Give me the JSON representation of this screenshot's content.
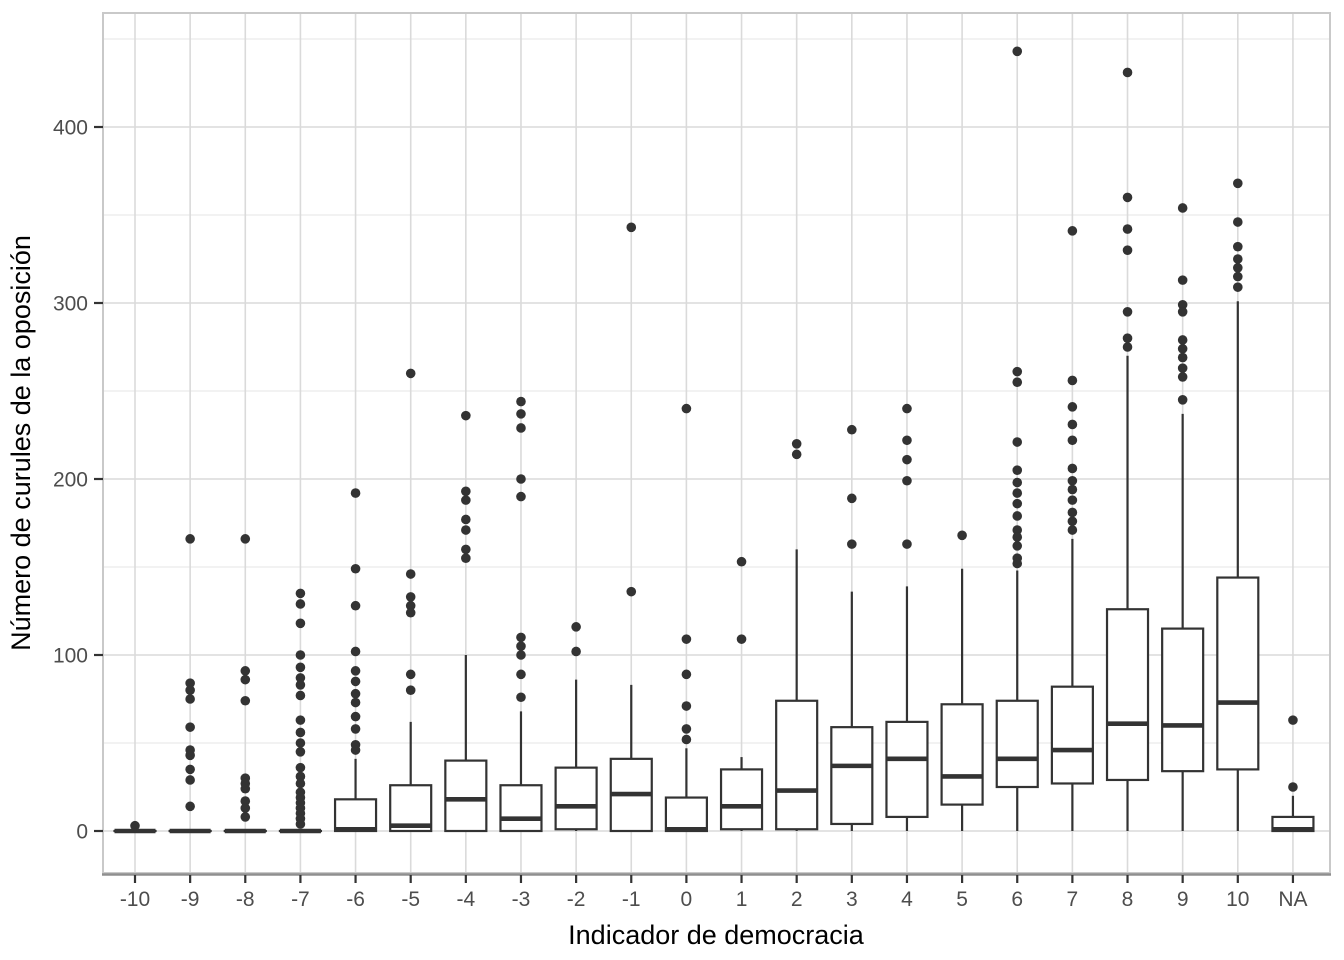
{
  "chart_data": {
    "type": "boxplot",
    "title": "",
    "xlabel": "Indicador de democracia",
    "ylabel": "Número de curules de la oposición",
    "y_ticks": [
      0,
      100,
      200,
      300,
      400
    ],
    "y_minor_ticks": [
      50,
      150,
      250,
      350,
      450
    ],
    "ylim": [
      -24,
      465
    ],
    "grid": true,
    "legend": "none",
    "categories": [
      "-10",
      "-9",
      "-8",
      "-7",
      "-6",
      "-5",
      "-4",
      "-3",
      "-2",
      "-1",
      "0",
      "1",
      "2",
      "3",
      "4",
      "5",
      "6",
      "7",
      "8",
      "9",
      "10",
      "NA"
    ],
    "boxes": [
      {
        "label": "-10",
        "whisker_low": 0,
        "q1": 0,
        "median": 0,
        "q3": 0,
        "whisker_high": 0,
        "outliers": [
          3
        ]
      },
      {
        "label": "-9",
        "whisker_low": 0,
        "q1": 0,
        "median": 0,
        "q3": 0,
        "whisker_high": 0,
        "outliers": [
          166,
          84,
          80,
          75,
          59,
          46,
          43,
          35,
          29,
          14
        ]
      },
      {
        "label": "-8",
        "whisker_low": 0,
        "q1": 0,
        "median": 0,
        "q3": 0,
        "whisker_high": 0,
        "outliers": [
          166,
          91,
          86,
          74,
          30,
          27,
          24,
          17,
          13,
          8
        ]
      },
      {
        "label": "-7",
        "whisker_low": 0,
        "q1": 0,
        "median": 0,
        "q3": 0,
        "whisker_high": 0,
        "outliers": [
          135,
          129,
          118,
          100,
          93,
          87,
          83,
          77,
          63,
          56,
          50,
          45,
          36,
          31,
          27,
          22,
          19,
          16,
          13,
          10,
          7,
          4
        ]
      },
      {
        "label": "-6",
        "whisker_low": 0,
        "q1": 0,
        "median": 1,
        "q3": 18,
        "whisker_high": 41,
        "outliers": [
          192,
          149,
          128,
          102,
          91,
          85,
          78,
          73,
          65,
          58,
          49,
          46
        ]
      },
      {
        "label": "-5",
        "whisker_low": 0,
        "q1": 0,
        "median": 3,
        "q3": 26,
        "whisker_high": 62,
        "outliers": [
          260,
          146,
          133,
          128,
          124,
          89,
          80
        ]
      },
      {
        "label": "-4",
        "whisker_low": 0,
        "q1": 0,
        "median": 18,
        "q3": 40,
        "whisker_high": 100,
        "outliers": [
          236,
          193,
          188,
          177,
          171,
          160,
          155
        ]
      },
      {
        "label": "-3",
        "whisker_low": 0,
        "q1": 0,
        "median": 7,
        "q3": 26,
        "whisker_high": 68,
        "outliers": [
          244,
          237,
          229,
          200,
          190,
          110,
          105,
          100,
          89,
          76
        ]
      },
      {
        "label": "-2",
        "whisker_low": 0,
        "q1": 1,
        "median": 14,
        "q3": 36,
        "whisker_high": 86,
        "outliers": [
          116,
          102
        ]
      },
      {
        "label": "-1",
        "whisker_low": 0,
        "q1": 0,
        "median": 21,
        "q3": 41,
        "whisker_high": 83,
        "outliers": [
          343,
          136
        ]
      },
      {
        "label": "0",
        "whisker_low": 0,
        "q1": 0,
        "median": 1,
        "q3": 19,
        "whisker_high": 47,
        "outliers": [
          240,
          109,
          89,
          71,
          58,
          52
        ]
      },
      {
        "label": "1",
        "whisker_low": 0,
        "q1": 1,
        "median": 14,
        "q3": 35,
        "whisker_high": 42,
        "outliers": [
          153,
          109
        ]
      },
      {
        "label": "2",
        "whisker_low": 0,
        "q1": 1,
        "median": 23,
        "q3": 74,
        "whisker_high": 160,
        "outliers": [
          220,
          214
        ]
      },
      {
        "label": "3",
        "whisker_low": 0,
        "q1": 4,
        "median": 37,
        "q3": 59,
        "whisker_high": 136,
        "outliers": [
          228,
          189,
          163
        ]
      },
      {
        "label": "4",
        "whisker_low": 0,
        "q1": 8,
        "median": 41,
        "q3": 62,
        "whisker_high": 139,
        "outliers": [
          240,
          222,
          211,
          199,
          163
        ]
      },
      {
        "label": "5",
        "whisker_low": 0,
        "q1": 15,
        "median": 31,
        "q3": 72,
        "whisker_high": 149,
        "outliers": [
          168
        ]
      },
      {
        "label": "6",
        "whisker_low": 0,
        "q1": 25,
        "median": 41,
        "q3": 74,
        "whisker_high": 148,
        "outliers": [
          443,
          261,
          255,
          221,
          205,
          198,
          192,
          186,
          179,
          171,
          167,
          162,
          155,
          152
        ]
      },
      {
        "label": "7",
        "whisker_low": 0,
        "q1": 27,
        "median": 46,
        "q3": 82,
        "whisker_high": 166,
        "outliers": [
          341,
          256,
          241,
          231,
          222,
          206,
          199,
          194,
          188,
          181,
          176,
          171
        ]
      },
      {
        "label": "8",
        "whisker_low": 0,
        "q1": 29,
        "median": 61,
        "q3": 126,
        "whisker_high": 270,
        "outliers": [
          431,
          360,
          342,
          330,
          295,
          280,
          275
        ]
      },
      {
        "label": "9",
        "whisker_low": 0,
        "q1": 34,
        "median": 60,
        "q3": 115,
        "whisker_high": 237,
        "outliers": [
          354,
          313,
          299,
          295,
          279,
          274,
          269,
          263,
          258,
          245
        ]
      },
      {
        "label": "10",
        "whisker_low": 0,
        "q1": 35,
        "median": 73,
        "q3": 144,
        "whisker_high": 301,
        "outliers": [
          368,
          346,
          332,
          325,
          320,
          315,
          309
        ]
      },
      {
        "label": "NA",
        "whisker_low": 0,
        "q1": 0,
        "median": 1,
        "q3": 8,
        "whisker_high": 20,
        "outliers": [
          63,
          25
        ]
      }
    ]
  },
  "style": {
    "stroke": "#333333",
    "point_fill": "#333333",
    "box_fill": "#ffffff",
    "grid_major": "#dadada",
    "grid_minor": "#ededed",
    "panel_border": "#c9c9c9",
    "axis_line": "#8f8f8f",
    "tick_color": "#333333",
    "tick_label_color": "#4d4d4d",
    "title_color": "#000000",
    "background": "#ffffff"
  }
}
